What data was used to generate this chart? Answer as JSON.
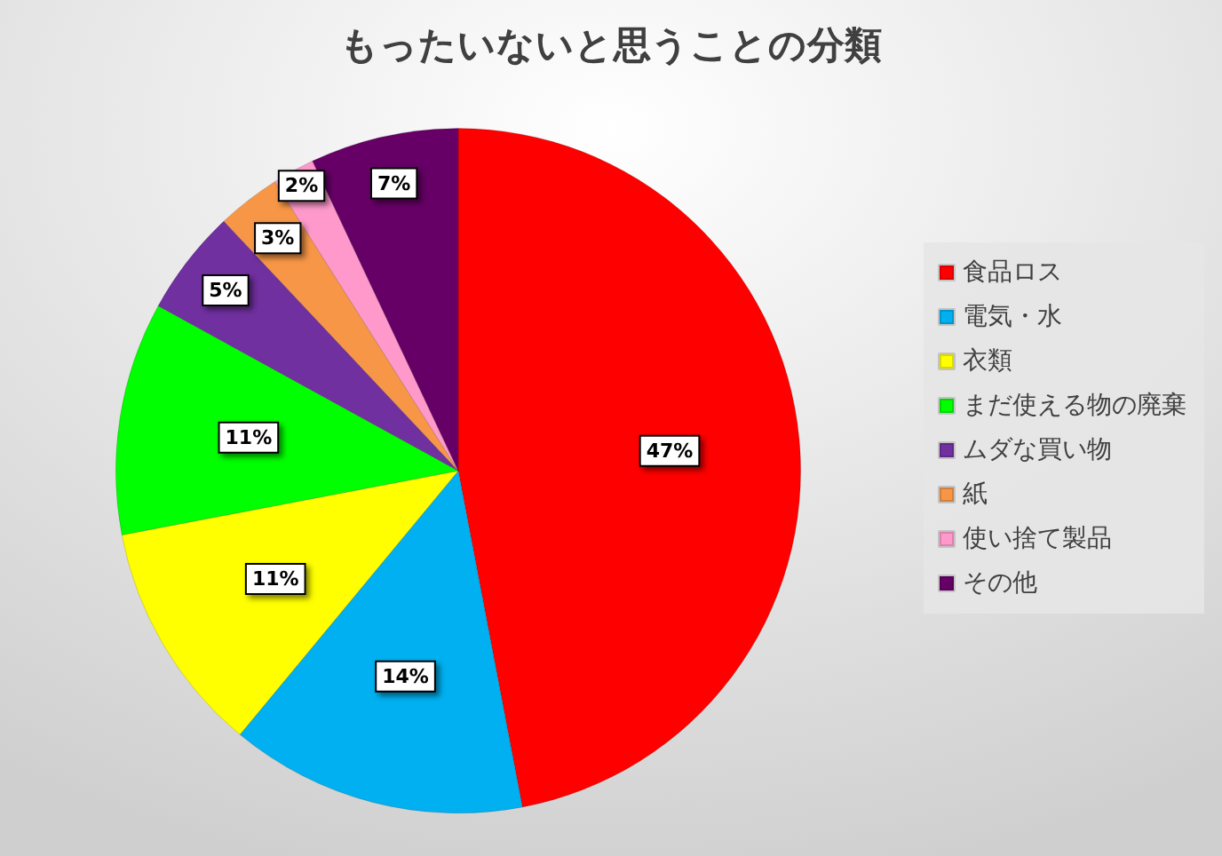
{
  "chart_data": {
    "type": "pie",
    "title": "もったいないと思うことの分類",
    "categories": [
      "食品ロス",
      "電気・水",
      "衣類",
      "まだ使える物の廃棄",
      "ムダな買い物",
      "紙",
      "使い捨て製品",
      "その他"
    ],
    "values": [
      47,
      14,
      11,
      11,
      5,
      3,
      2,
      7
    ],
    "colors": [
      "#ff0000",
      "#00b0f0",
      "#ffff00",
      "#00ff00",
      "#7030a0",
      "#f79646",
      "#ff99cc",
      "#660066"
    ],
    "value_labels": [
      "47%",
      "14%",
      "11%",
      "11%",
      "5%",
      "3%",
      "2%",
      "7%"
    ],
    "legend": "right"
  }
}
